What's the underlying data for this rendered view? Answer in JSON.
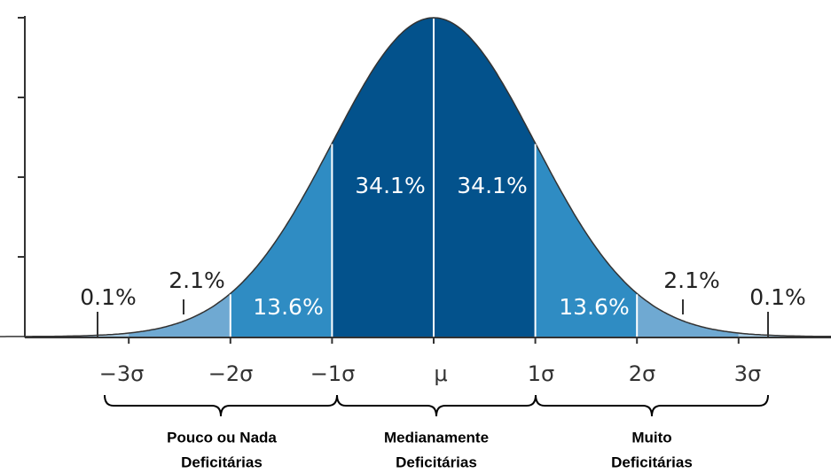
{
  "regions": [
    {
      "label": "0.1%"
    },
    {
      "label": "2.1%"
    },
    {
      "label": "13.6%"
    },
    {
      "label": "34.1%"
    },
    {
      "label": "34.1%"
    },
    {
      "label": "13.6%"
    },
    {
      "label": "2.1%"
    },
    {
      "label": "0.1%"
    }
  ],
  "axis_labels": [
    "−3σ",
    "−2σ",
    "−1σ",
    "μ",
    "1σ",
    "2σ",
    "3σ"
  ],
  "groups": [
    {
      "lines": [
        "Pouco ou Nada",
        "Deficitárias"
      ]
    },
    {
      "lines": [
        "Medianamente",
        "Deficitárias"
      ]
    },
    {
      "lines": [
        "Muito",
        "Deficitárias"
      ]
    }
  ]
}
